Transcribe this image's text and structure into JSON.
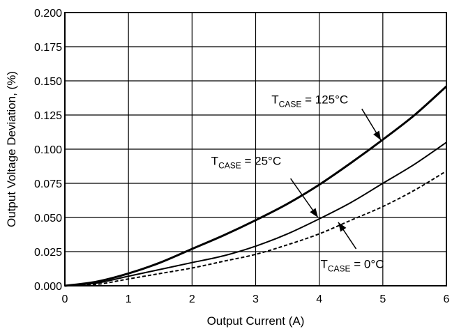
{
  "chart_data": {
    "type": "line",
    "xlabel": "Output Current (A)",
    "ylabel": "Output Voltage Deviation, (%)",
    "xlim": [
      0,
      6
    ],
    "ylim": [
      0,
      0.2
    ],
    "x_ticks": [
      "0",
      "1",
      "2",
      "3",
      "4",
      "5",
      "6"
    ],
    "y_ticks": [
      "0.000",
      "0.025",
      "0.050",
      "0.075",
      "0.100",
      "0.125",
      "0.150",
      "0.175",
      "0.200"
    ],
    "grid": true,
    "x": [
      0,
      0.5,
      1,
      1.5,
      2,
      2.5,
      3,
      3.5,
      4,
      4.5,
      5,
      5.5,
      6
    ],
    "series": [
      {
        "key": "t125",
        "values": [
          0,
          0.003,
          0.009,
          0.017,
          0.027,
          0.037,
          0.048,
          0.06,
          0.074,
          0.09,
          0.107,
          0.125,
          0.146
        ],
        "style": "thick",
        "color": "#000000"
      },
      {
        "key": "t25",
        "values": [
          0,
          0.002,
          0.007,
          0.012,
          0.017,
          0.022,
          0.029,
          0.038,
          0.049,
          0.061,
          0.075,
          0.089,
          0.105
        ],
        "style": "solid",
        "color": "#000000"
      },
      {
        "key": "t0",
        "values": [
          0,
          0.001,
          0.005,
          0.009,
          0.013,
          0.018,
          0.023,
          0.03,
          0.038,
          0.048,
          0.058,
          0.07,
          0.084
        ],
        "style": "dashed",
        "color": "#000000"
      }
    ],
    "annotations": [
      {
        "key": "t125",
        "main": "T",
        "sub": "CASE",
        "rest": " = 125°C"
      },
      {
        "key": "t25",
        "main": "T",
        "sub": "CASE",
        "rest": " = 25°C"
      },
      {
        "key": "t0",
        "main": "T",
        "sub": "CASE",
        "rest": " = 0°C"
      }
    ]
  }
}
